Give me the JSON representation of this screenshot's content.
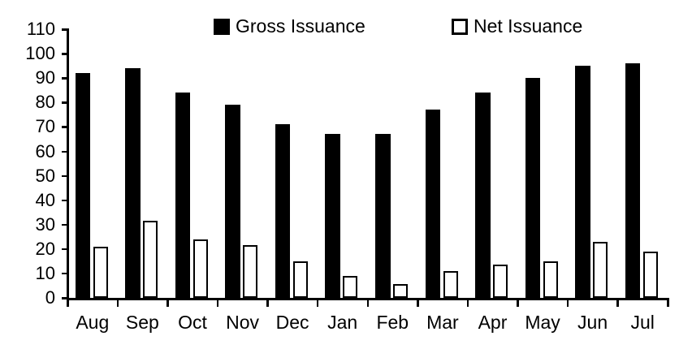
{
  "chart_data": {
    "type": "bar",
    "title": "",
    "categories": [
      "Aug",
      "Sep",
      "Oct",
      "Nov",
      "Dec",
      "Jan",
      "Feb",
      "Mar",
      "Apr",
      "May",
      "Jun",
      "Jul"
    ],
    "series": [
      {
        "name": "Gross Issuance",
        "color": "#000000",
        "values": [
          92,
          94,
          84,
          79,
          71,
          67,
          67,
          77,
          84,
          90,
          95,
          96
        ]
      },
      {
        "name": "Net Issuance",
        "color": "#ffffff",
        "border_color": "#000000",
        "values": [
          21,
          31.5,
          24,
          21.5,
          15,
          9,
          5.5,
          11,
          13.5,
          15,
          23,
          19
        ]
      }
    ],
    "ylim": [
      0,
      110
    ],
    "yticks": [
      0,
      10,
      20,
      30,
      40,
      50,
      60,
      70,
      80,
      90,
      100,
      110
    ],
    "grid": false,
    "legend_position": "top-center"
  },
  "colors": {
    "axis": "#000000",
    "text": "#000000",
    "background": "#ffffff"
  }
}
